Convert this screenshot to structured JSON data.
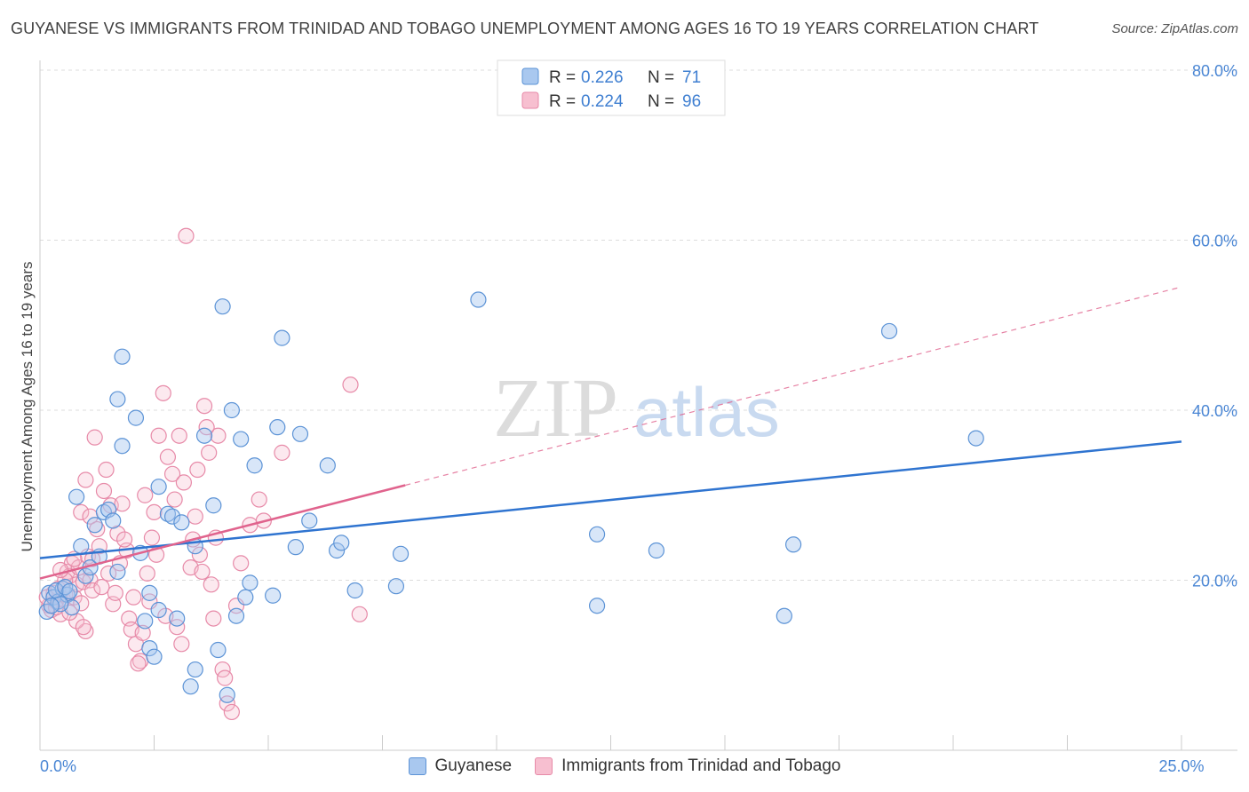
{
  "title": "GUYANESE VS IMMIGRANTS FROM TRINIDAD AND TOBAGO UNEMPLOYMENT AMONG AGES 16 TO 19 YEARS CORRELATION CHART",
  "source": "Source: ZipAtlas.com",
  "watermark": {
    "zip": "ZIP",
    "atlas": "atlas"
  },
  "colors": {
    "blue_fill": "#a9c8ef",
    "blue_stroke": "#5c93d6",
    "blue_line": "#2f74d0",
    "pink_fill": "#f7bfd0",
    "pink_stroke": "#e78aa8",
    "pink_line": "#e0638d",
    "axis_text": "#4a86d4",
    "grid": "#dddddd"
  },
  "legend": {
    "rows": [
      {
        "r_label": "R = ",
        "r_value": "0.226",
        "n_label": "N = ",
        "n_value": "71",
        "series": "blue"
      },
      {
        "r_label": "R = ",
        "r_value": "0.224",
        "n_label": "N = ",
        "n_value": "96",
        "series": "pink"
      }
    ]
  },
  "bottom_legend": [
    {
      "label": "Guyanese",
      "series": "blue"
    },
    {
      "label": "Immigrants from Trinidad and Tobago",
      "series": "pink"
    }
  ],
  "chart_data": {
    "type": "scatter",
    "title": "GUYANESE VS IMMIGRANTS FROM TRINIDAD AND TOBAGO UNEMPLOYMENT AMONG AGES 16 TO 19 YEARS CORRELATION CHART",
    "xlabel": "",
    "ylabel": "Unemployment Among Ages 16 to 19 years",
    "xlim": [
      0,
      25
    ],
    "ylim": [
      0,
      80
    ],
    "x_ticks": [
      0,
      25
    ],
    "x_tick_labels": [
      "0.0%",
      "25.0%"
    ],
    "y_ticks": [
      20,
      40,
      60,
      80
    ],
    "y_tick_labels": [
      "20.0%",
      "40.0%",
      "60.0%",
      "80.0%"
    ],
    "grid": true,
    "legend_position": "top-center",
    "series": [
      {
        "name": "Guyanese",
        "color": "blue",
        "r": 0.226,
        "n": 71,
        "trend": {
          "x": [
            0,
            25
          ],
          "y": [
            22.6,
            36.3
          ],
          "solid_to": 25
        },
        "points": [
          [
            0.2,
            18.5
          ],
          [
            0.3,
            18.0
          ],
          [
            0.4,
            17.5
          ],
          [
            0.5,
            19.0
          ],
          [
            0.6,
            18.3
          ],
          [
            0.7,
            16.8
          ],
          [
            0.8,
            29.8
          ],
          [
            0.9,
            24.0
          ],
          [
            1.0,
            20.5
          ],
          [
            1.1,
            21.5
          ],
          [
            1.2,
            26.5
          ],
          [
            1.3,
            22.8
          ],
          [
            1.4,
            28.0
          ],
          [
            1.5,
            28.3
          ],
          [
            1.6,
            27.0
          ],
          [
            1.7,
            21.0
          ],
          [
            1.8,
            35.8
          ],
          [
            1.8,
            46.3
          ],
          [
            1.7,
            41.3
          ],
          [
            2.1,
            39.1
          ],
          [
            2.2,
            23.2
          ],
          [
            2.3,
            15.2
          ],
          [
            2.4,
            18.5
          ],
          [
            2.4,
            12.0
          ],
          [
            2.5,
            11.0
          ],
          [
            2.6,
            31.0
          ],
          [
            2.6,
            16.5
          ],
          [
            2.8,
            27.8
          ],
          [
            2.9,
            27.5
          ],
          [
            3.0,
            15.5
          ],
          [
            3.1,
            26.8
          ],
          [
            3.3,
            7.5
          ],
          [
            3.4,
            24.0
          ],
          [
            3.4,
            9.5
          ],
          [
            3.6,
            37.0
          ],
          [
            3.8,
            28.8
          ],
          [
            3.9,
            11.8
          ],
          [
            4.0,
            52.2
          ],
          [
            4.1,
            6.5
          ],
          [
            4.2,
            40.0
          ],
          [
            4.3,
            15.8
          ],
          [
            4.4,
            36.6
          ],
          [
            4.5,
            18.0
          ],
          [
            4.6,
            19.7
          ],
          [
            4.7,
            33.5
          ],
          [
            5.1,
            18.2
          ],
          [
            5.2,
            38.0
          ],
          [
            5.3,
            48.5
          ],
          [
            5.6,
            23.9
          ],
          [
            5.7,
            37.2
          ],
          [
            5.9,
            27.0
          ],
          [
            6.3,
            33.5
          ],
          [
            6.5,
            23.5
          ],
          [
            6.6,
            24.4
          ],
          [
            6.9,
            18.8
          ],
          [
            7.8,
            19.3
          ],
          [
            7.9,
            23.1
          ],
          [
            9.6,
            53.0
          ],
          [
            12.2,
            25.4
          ],
          [
            12.2,
            17.0
          ],
          [
            13.5,
            23.5
          ],
          [
            16.3,
            15.8
          ],
          [
            16.5,
            24.2
          ],
          [
            18.6,
            49.3
          ],
          [
            20.5,
            36.7
          ],
          [
            0.15,
            16.3
          ],
          [
            0.35,
            18.8
          ],
          [
            0.45,
            17.2
          ],
          [
            0.55,
            19.2
          ],
          [
            0.25,
            17.0
          ],
          [
            0.65,
            18.7
          ]
        ]
      },
      {
        "name": "Immigrants from Trinidad and Tobago",
        "color": "pink",
        "r": 0.224,
        "n": 96,
        "trend": {
          "x": [
            0,
            25
          ],
          "y": [
            20.2,
            54.5
          ],
          "solid_to": 8
        }
      }
    ]
  }
}
